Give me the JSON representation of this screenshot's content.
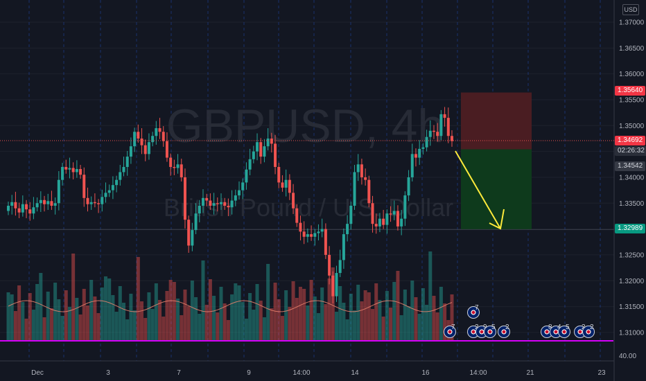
{
  "watermark": {
    "symbol": "GBPUSD, 4h",
    "description": "British Pound / U.S. Dollar"
  },
  "price_axis": {
    "currency": "USD",
    "ticks": [
      "1.37000",
      "1.36500",
      "1.36000",
      "1.35500",
      "1.35000",
      "1.34500",
      "1.34000",
      "1.33500",
      "1.33000",
      "1.32500",
      "1.32000",
      "1.31500",
      "1.31000"
    ],
    "volume_tick": "40.00",
    "tags": {
      "stop_loss": "1.35640",
      "current_price": "1.34692",
      "countdown": "02:26:32",
      "entry": "1.34542",
      "take_profit": "1.32989"
    }
  },
  "time_axis": {
    "labels": [
      "Dec",
      "3",
      "7",
      "9",
      "14:00",
      "14",
      "16",
      "14:00",
      "21",
      "23"
    ]
  },
  "events": {
    "labels": [
      "7",
      "7",
      "2",
      "9",
      "5",
      "2",
      "8",
      "4",
      "5",
      "2",
      "2"
    ]
  },
  "colors": {
    "background": "#131722",
    "bull": "#26a69a",
    "bear": "#ef5350",
    "loss_zone": "#4a1d22",
    "profit_zone": "#0e3a1c",
    "arrow": "#ffeb3b",
    "volume_line": "#f0856e",
    "separator": "#d500f9"
  },
  "chart_data": {
    "type": "candlestick",
    "title": "GBPUSD, 4h",
    "ylim": [
      1.3065,
      1.3735
    ],
    "position": {
      "direction": "short",
      "entry": 1.34542,
      "stop": 1.3564,
      "target": 1.32989
    }
  }
}
